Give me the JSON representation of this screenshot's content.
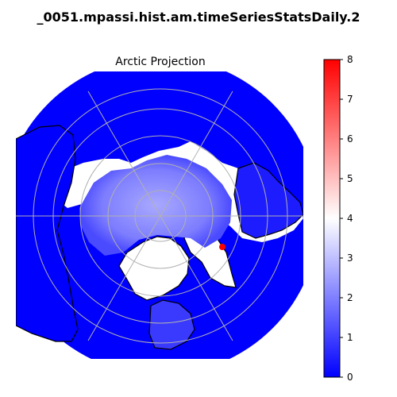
{
  "figure": {
    "title": "…_0051.mpassi.hist.am.timeSeriesStatsDaily.2…",
    "title_raw": "_0051.mpassi.hist.am.timeSeriesStatsDaily.2"
  },
  "map": {
    "title": "Arctic Projection",
    "projection": "north-polar-stereographic",
    "gridlines": true
  },
  "colorbar": {
    "min": 0,
    "max": 8,
    "ticks": [
      "0",
      "1",
      "2",
      "3",
      "4",
      "5",
      "6",
      "7",
      "8"
    ],
    "colors": [
      "#0000ff",
      "#ffffff",
      "#ff0000"
    ]
  },
  "colors": {
    "ocean_fill": "#0000ff",
    "coast": "#000000",
    "grid": "#b0b0b0",
    "land": "#ffffff",
    "hotspot": "#ff0000"
  }
}
